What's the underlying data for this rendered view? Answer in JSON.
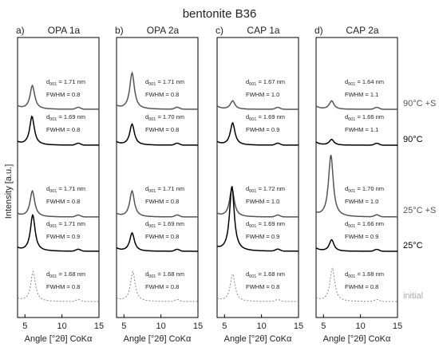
{
  "figure": {
    "title": "bentonite B36",
    "ylabel": "Intensity [a.u.]"
  },
  "chart_data": [
    {
      "type": "line",
      "panel": "a)",
      "title": "OPA 1a",
      "xlabel": "Angle [°2θ] CoKα",
      "xlim": [
        4,
        15
      ],
      "xticks": [
        5,
        10,
        15
      ],
      "series": [
        {
          "name": "90°C +S",
          "peak": 6.0,
          "height": 0.62,
          "d001": "1.71 nm",
          "fwhm": "0.8",
          "color": "#555555",
          "dash": false
        },
        {
          "name": "90°C",
          "peak": 5.95,
          "height": 0.75,
          "d001": "1.69 nm",
          "fwhm": "0.8",
          "color": "#000000",
          "dash": false
        },
        {
          "name": "25°C +S",
          "peak": 6.0,
          "height": 0.68,
          "d001": "1.71 nm",
          "fwhm": "0.8",
          "color": "#555555",
          "dash": false
        },
        {
          "name": "25°C",
          "peak": 6.05,
          "height": 0.95,
          "d001": "1.71 nm",
          "fwhm": "0.9",
          "color": "#000000",
          "dash": false
        },
        {
          "name": "initial",
          "peak": 6.1,
          "height": 0.78,
          "d001": "1.68 nm",
          "fwhm": "0.8",
          "color": "#888888",
          "dash": true
        }
      ]
    },
    {
      "type": "line",
      "panel": "b)",
      "title": "OPA 2a",
      "xlabel": "Angle [°2θ] CoKα",
      "xlim": [
        4,
        15
      ],
      "xticks": [
        5,
        10,
        15
      ],
      "series": [
        {
          "name": "90°C +S",
          "peak": 6.1,
          "height": 0.95,
          "d001": "1.71 nm",
          "fwhm": "0.8",
          "color": "#555555",
          "dash": false
        },
        {
          "name": "90°C",
          "peak": 6.1,
          "height": 0.55,
          "d001": "1.70 nm",
          "fwhm": "0.8",
          "color": "#000000",
          "dash": false
        },
        {
          "name": "25°C +S",
          "peak": 6.1,
          "height": 0.68,
          "d001": "1.71 nm",
          "fwhm": "0.8",
          "color": "#555555",
          "dash": false
        },
        {
          "name": "25°C",
          "peak": 6.1,
          "height": 0.48,
          "d001": "1.69 nm",
          "fwhm": "0.8",
          "color": "#000000",
          "dash": false
        },
        {
          "name": "initial",
          "peak": 6.2,
          "height": 0.78,
          "d001": "1.68 nm",
          "fwhm": "0.8",
          "color": "#888888",
          "dash": true
        }
      ]
    },
    {
      "type": "line",
      "panel": "c)",
      "title": "CAP 1a",
      "xlabel": "Angle [°2θ] CoKα",
      "xlim": [
        4,
        15
      ],
      "xticks": [
        5,
        10,
        15
      ],
      "series": [
        {
          "name": "90°C +S",
          "peak": 6.1,
          "height": 0.22,
          "d001": "1.67 nm",
          "fwhm": "1.0",
          "color": "#555555",
          "dash": false
        },
        {
          "name": "90°C",
          "peak": 6.1,
          "height": 0.58,
          "d001": "1.69 nm",
          "fwhm": "0.9",
          "color": "#000000",
          "dash": false
        },
        {
          "name": "25°C +S",
          "peak": 6.0,
          "height": 0.75,
          "d001": "1.72 nm",
          "fwhm": "1.0",
          "color": "#555555",
          "dash": false
        },
        {
          "name": "25°C",
          "peak": 6.0,
          "height": 1.7,
          "d001": "1.69 nm",
          "fwhm": "0.9",
          "color": "#000000",
          "dash": false
        },
        {
          "name": "initial",
          "peak": 6.1,
          "height": 0.72,
          "d001": "1.68 nm",
          "fwhm": "0.8",
          "color": "#888888",
          "dash": true
        }
      ]
    },
    {
      "type": "line",
      "panel": "d)",
      "title": "CAP 2a",
      "xlabel": "Angle [°2θ] CoKα",
      "xlim": [
        4,
        15
      ],
      "xticks": [
        5,
        10,
        15
      ],
      "series": [
        {
          "name": "90°C +S",
          "peak": 6.1,
          "height": 0.22,
          "d001": "1.64 nm",
          "fwhm": "1.1",
          "color": "#555555",
          "dash": false
        },
        {
          "name": "90°C",
          "peak": 6.1,
          "height": 0.15,
          "d001": "1.66 nm",
          "fwhm": "1.1",
          "color": "#000000",
          "dash": false
        },
        {
          "name": "25°C +S",
          "peak": 6.0,
          "height": 1.62,
          "d001": "1.70 nm",
          "fwhm": "1.0",
          "color": "#555555",
          "dash": false
        },
        {
          "name": "25°C",
          "peak": 6.1,
          "height": 0.3,
          "d001": "1.66 nm",
          "fwhm": "0.9",
          "color": "#000000",
          "dash": false
        },
        {
          "name": "initial",
          "peak": 6.2,
          "height": 0.88,
          "d001": "1.68 nm",
          "fwhm": "0.8",
          "color": "#888888",
          "dash": true
        }
      ]
    }
  ],
  "condition_labels": [
    {
      "text": "90°C +S",
      "color": "#555555"
    },
    {
      "text": "90°C",
      "color": "#000000"
    },
    {
      "text": "25°C +S",
      "color": "#555555"
    },
    {
      "text": "25°C",
      "color": "#000000"
    },
    {
      "text": "initial",
      "color": "#aaaaaa"
    }
  ]
}
